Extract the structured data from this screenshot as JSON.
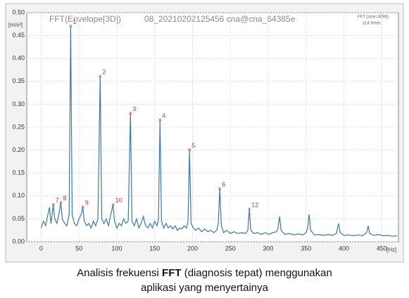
{
  "chart_data": {
    "type": "line",
    "title": "FFT(Envelope[3D])",
    "subtitle": "08_20210202125456 cna@cna_64385e",
    "info": [
      "FFT (size=4096)",
      "x14 times"
    ],
    "y_label": "[m/s²]",
    "x_label": "[Hz]",
    "xlim": [
      -19,
      472
    ],
    "ylim": [
      0,
      0.5
    ],
    "xticks": [
      0,
      50,
      100,
      150,
      200,
      250,
      300,
      350,
      400,
      450
    ],
    "yticks": [
      {
        "value": 0,
        "label": "0.00"
      },
      0.05,
      {
        "value": 0.1,
        "label": "0.10"
      },
      0.15,
      {
        "value": 0.2,
        "label": "0.20"
      },
      0.25,
      {
        "value": 0.3,
        "label": "0.30"
      },
      0.35,
      {
        "value": 0.4,
        "label": "0.40"
      },
      0.45,
      {
        "value": 0.5,
        "label": "0.50"
      }
    ],
    "grid": true,
    "series": [
      {
        "name": "FFT",
        "color": "#3a78b0",
        "x": [
          0,
          3,
          6,
          9,
          11,
          13,
          16,
          18,
          21,
          24,
          26,
          28,
          31,
          34,
          37,
          39,
          41,
          44,
          47,
          50,
          53,
          55,
          57,
          60,
          63,
          66,
          69,
          72,
          75,
          78,
          80,
          83,
          86,
          89,
          92,
          95,
          97,
          100,
          103,
          106,
          109,
          112,
          115,
          118,
          120,
          123,
          126,
          129,
          132,
          135,
          138,
          141,
          144,
          147,
          150,
          153,
          155,
          157,
          159,
          162,
          165,
          168,
          171,
          174,
          177,
          180,
          183,
          186,
          189,
          192,
          194,
          196,
          198,
          201,
          204,
          208,
          212,
          216,
          220,
          224,
          228,
          232,
          234,
          236,
          238,
          241,
          245,
          250,
          255,
          260,
          265,
          270,
          273,
          275,
          277,
          281,
          286,
          291,
          296,
          301,
          306,
          311,
          313,
          315,
          317,
          322,
          328,
          334,
          340,
          346,
          350,
          352,
          354,
          356,
          361,
          367,
          373,
          379,
          385,
          390,
          393,
          395,
          400,
          406,
          412,
          418,
          424,
          430,
          432,
          434,
          440,
          446,
          452,
          458,
          464,
          470
        ],
        "values": [
          0.03,
          0.045,
          0.035,
          0.06,
          0.075,
          0.04,
          0.08,
          0.05,
          0.04,
          0.065,
          0.085,
          0.05,
          0.04,
          0.035,
          0.06,
          0.47,
          0.06,
          0.04,
          0.035,
          0.05,
          0.06,
          0.075,
          0.045,
          0.035,
          0.04,
          0.03,
          0.045,
          0.035,
          0.05,
          0.36,
          0.05,
          0.04,
          0.05,
          0.035,
          0.06,
          0.08,
          0.045,
          0.03,
          0.04,
          0.035,
          0.05,
          0.04,
          0.045,
          0.28,
          0.045,
          0.035,
          0.05,
          0.03,
          0.04,
          0.055,
          0.035,
          0.03,
          0.04,
          0.03,
          0.045,
          0.035,
          0.05,
          0.265,
          0.045,
          0.03,
          0.04,
          0.03,
          0.035,
          0.028,
          0.035,
          0.025,
          0.03,
          0.028,
          0.035,
          0.03,
          0.045,
          0.2,
          0.04,
          0.03,
          0.025,
          0.03,
          0.022,
          0.028,
          0.022,
          0.025,
          0.02,
          0.025,
          0.04,
          0.115,
          0.035,
          0.02,
          0.025,
          0.018,
          0.022,
          0.018,
          0.02,
          0.018,
          0.025,
          0.07,
          0.025,
          0.018,
          0.02,
          0.016,
          0.02,
          0.016,
          0.02,
          0.022,
          0.03,
          0.055,
          0.025,
          0.016,
          0.018,
          0.015,
          0.017,
          0.015,
          0.02,
          0.03,
          0.06,
          0.025,
          0.015,
          0.016,
          0.014,
          0.016,
          0.014,
          0.018,
          0.04,
          0.02,
          0.014,
          0.015,
          0.013,
          0.015,
          0.013,
          0.02,
          0.035,
          0.018,
          0.014,
          0.016,
          0.013,
          0.014,
          0.012,
          0.013
        ]
      }
    ],
    "markers": {
      "color": "#e03030",
      "x": [
        39,
        78,
        118,
        157,
        196,
        236,
        16,
        26,
        55,
        95,
        275
      ],
      "values": [
        0.47,
        0.36,
        0.28,
        0.265,
        0.2,
        0.115,
        0.08,
        0.085,
        0.075,
        0.08,
        0.07
      ],
      "labels": [
        "1",
        "2",
        "3",
        "4",
        "5",
        "6",
        "7",
        "8",
        "9",
        "10",
        "12"
      ]
    }
  },
  "caption": {
    "line1_before": "Analisis frekuensi ",
    "line1_bold": "FFT",
    "line1_after": " (diagnosis tepat) menggunakan",
    "line2": "aplikasi yang menyertainya"
  }
}
